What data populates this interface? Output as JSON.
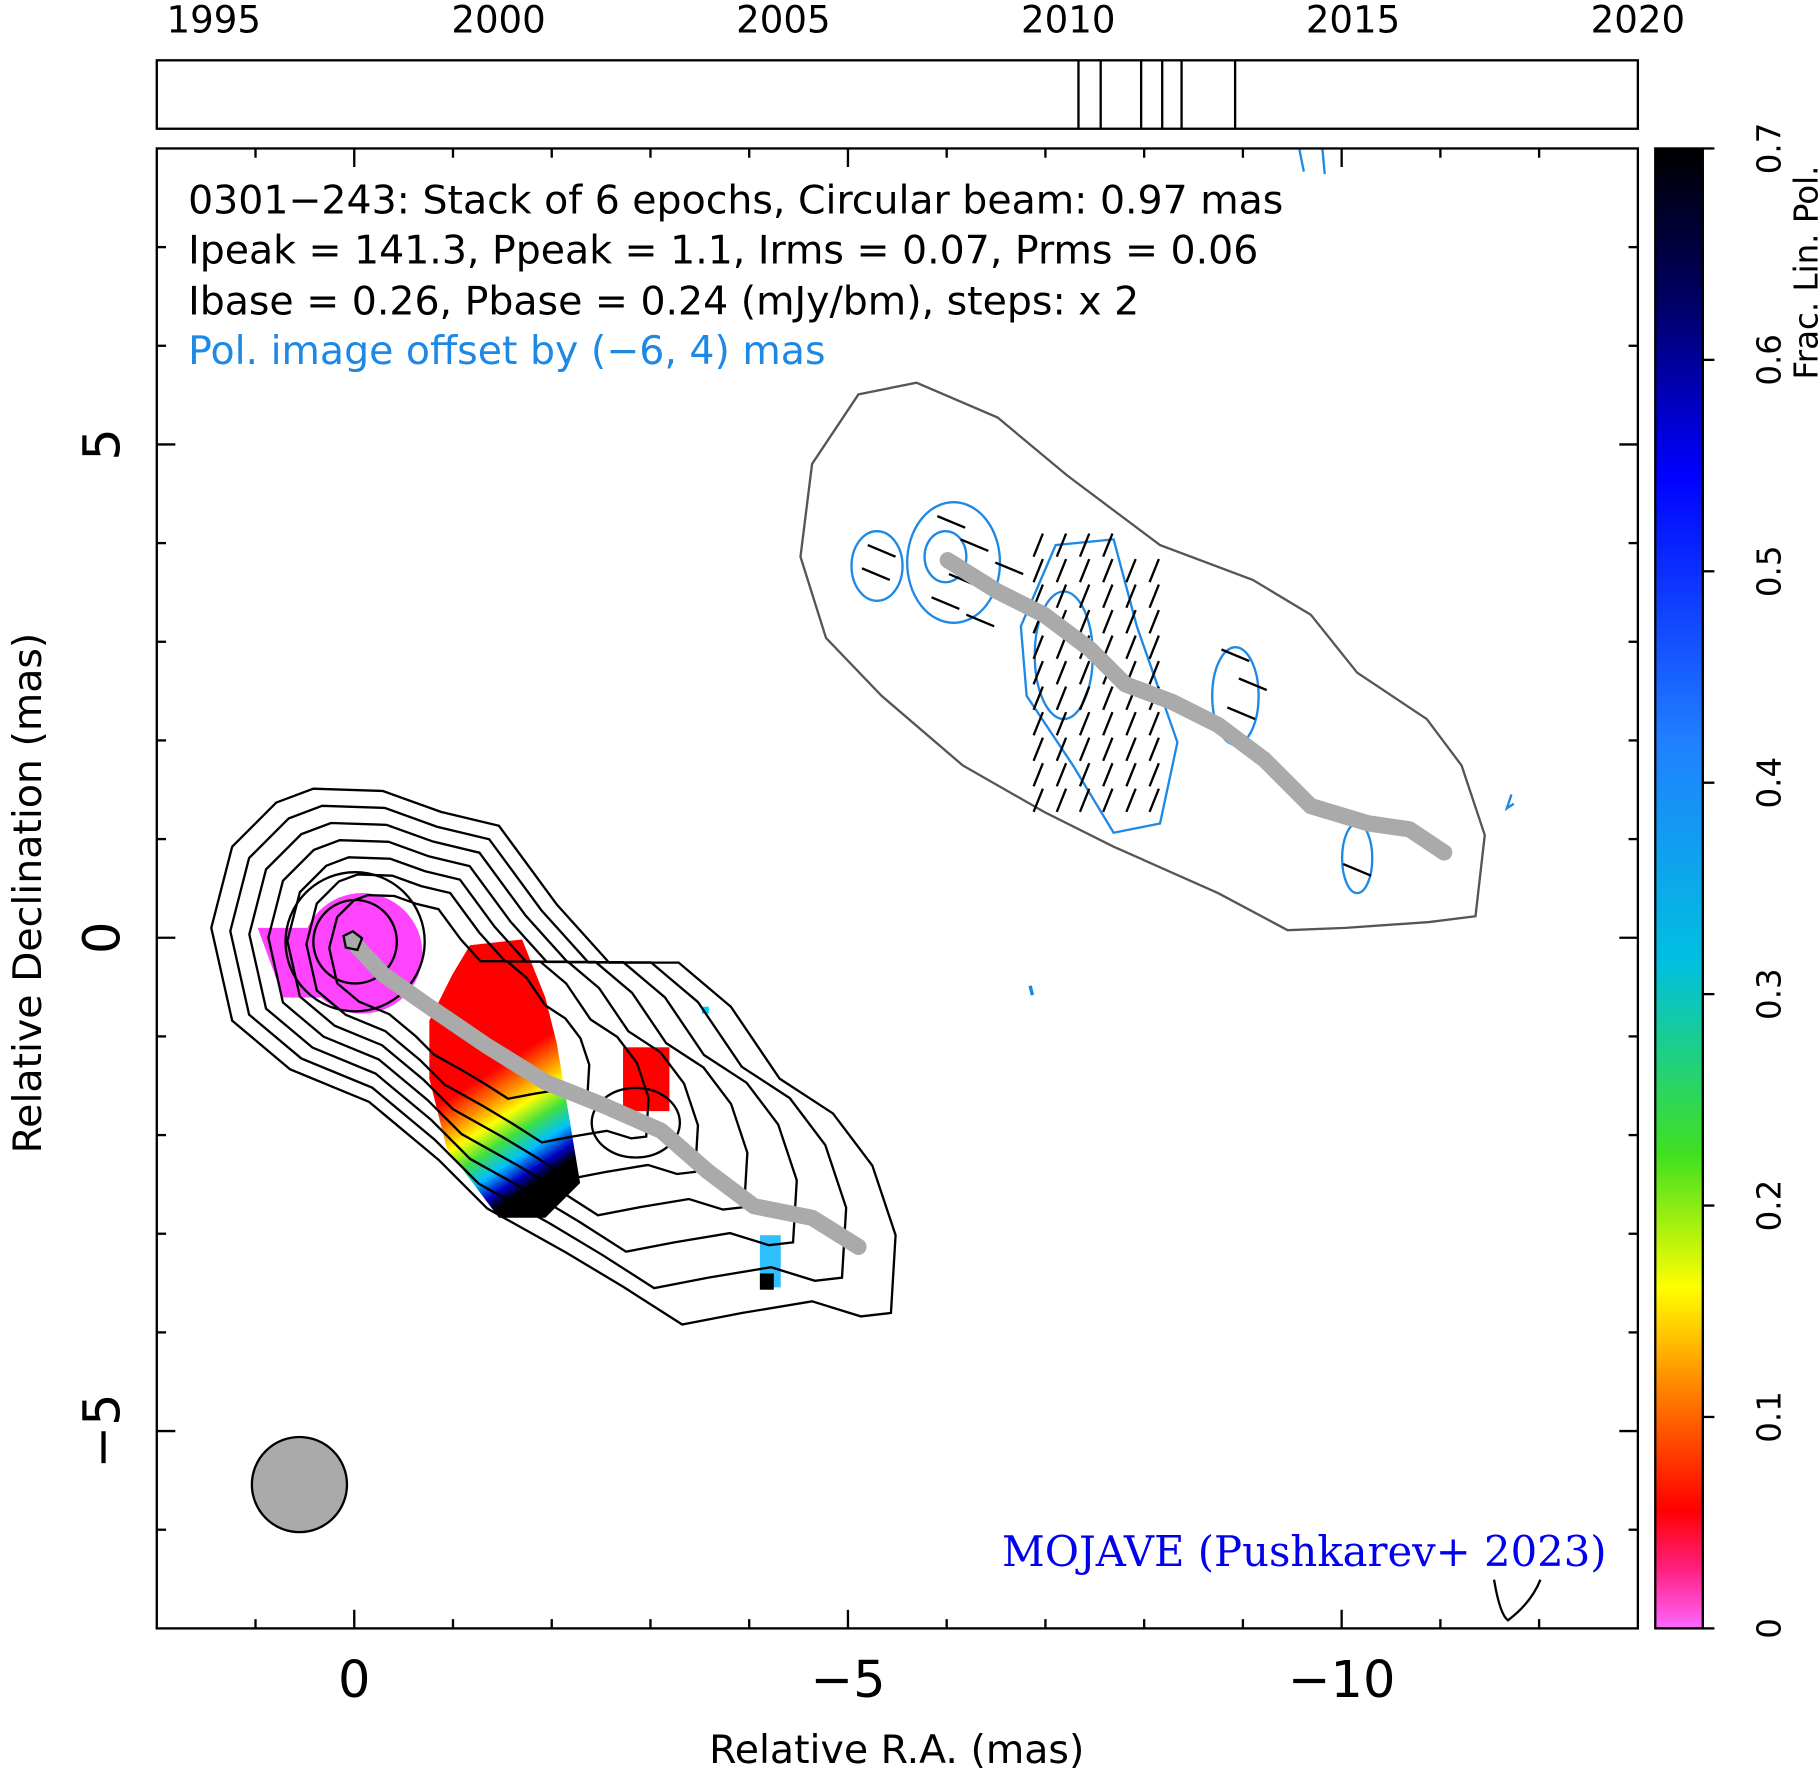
{
  "chart_data": {
    "type": "vlbi-map",
    "title_lines": [
      "0301−243: Stack of 6 epochs, Circular beam: 0.97 mas",
      "Ipeak = 141.3, Ppeak = 1.1, Irms = 0.07, Prms = 0.06",
      "Ibase = 0.26, Pbase = 0.24 (mJy/bm), steps: x 2"
    ],
    "offset_note": "Pol. image offset by (−6, 4) mas",
    "credit": "MOJAVE (Pushkarev+ 2023)",
    "xlabel": "Relative R.A. (mas)",
    "ylabel": "Relative Declination (mas)",
    "xlim": [
      2,
      -13
    ],
    "ylim": [
      -7,
      8
    ],
    "xticks": [
      0,
      {
        "value": -5,
        "label": "−5"
      },
      {
        "value": -10,
        "label": "−10"
      }
    ],
    "yticks": [
      {
        "value": -5,
        "label": "−5"
      },
      0,
      5
    ],
    "xminorticks": [
      1,
      -1,
      -2,
      -3,
      -4,
      -6,
      -7,
      -8,
      -9,
      -11,
      -12
    ],
    "yminorticks": [
      -6,
      -4,
      -3,
      -2,
      -1,
      1,
      2,
      3,
      4,
      6,
      7
    ],
    "timeline": {
      "xlim": [
        1994,
        2020
      ],
      "xticks": [
        1995,
        2000,
        2005,
        2010,
        2015,
        2020
      ],
      "epochs": [
        2010.18,
        2010.57,
        2011.28,
        2011.65,
        2011.99,
        2012.93
      ]
    },
    "colorbar": {
      "label": "Frac. Lin. Pol.",
      "lim": [
        0,
        0.7
      ],
      "ticks": [
        0,
        0.1,
        0.2,
        0.3,
        0.4,
        0.5,
        0.6,
        0.7
      ]
    }
  }
}
